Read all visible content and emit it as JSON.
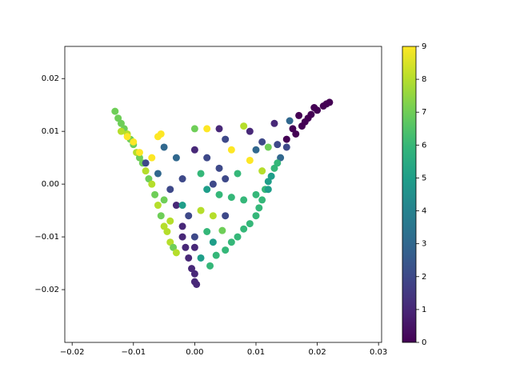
{
  "chart_data": {
    "type": "scatter",
    "x": [
      -0.013,
      -0.0125,
      -0.012,
      -0.0115,
      -0.011,
      -0.0105,
      -0.01,
      -0.0095,
      -0.009,
      -0.0085,
      -0.008,
      -0.0075,
      -0.007,
      -0.0065,
      -0.006,
      -0.0055,
      -0.005,
      -0.0045,
      -0.004,
      -0.0035,
      -0.003,
      -0.001,
      -0.0005,
      0,
      0,
      0.0003,
      -0.0015,
      -0.002,
      0.022,
      0.021,
      0.02,
      0.019,
      0.0185,
      0.018,
      0.0175,
      0.017,
      0.0215,
      0.0195,
      0.016,
      0.0165,
      0.015,
      0.015,
      0.014,
      0.0135,
      0.013,
      0.0125,
      0.012,
      0.0115,
      0.011,
      0.0105,
      0.01,
      0.009,
      0.008,
      0.007,
      0.006,
      0.005,
      0.0035,
      0.0025,
      0.002,
      0.004,
      0.006,
      0.008,
      0.01,
      0.012,
      0.003,
      0.005,
      0.001,
      -0.002,
      -0.004,
      -0.003,
      -0.001,
      0.001,
      0.003,
      -0.002,
      0,
      0.002,
      -0.004,
      -0.005,
      -0.006,
      -0.008,
      -0.007,
      -0.009,
      -0.011,
      -0.01,
      -0.012,
      -0.006,
      -0.0055,
      -0.005,
      -0.003,
      0,
      0,
      0.002,
      0.004,
      0.005,
      0.006,
      0.008,
      0.009,
      0.01,
      0.011,
      0.013,
      0.0135,
      0.0155,
      0.009,
      0.011,
      0.012,
      0.007,
      0.004,
      0.005,
      0,
      0.001,
      0.0045,
      0.003,
      -0.002,
      0.002
    ],
    "values": [
      0.0138,
      0.0125,
      0.0115,
      0.0105,
      0.0095,
      0.0085,
      0.0075,
      0.006,
      0.005,
      0.004,
      0.0025,
      0.001,
      0,
      -0.002,
      -0.004,
      -0.006,
      -0.008,
      -0.009,
      -0.011,
      -0.012,
      -0.013,
      -0.014,
      -0.016,
      -0.017,
      -0.0185,
      -0.019,
      -0.012,
      -0.01,
      0.0155,
      0.0148,
      0.014,
      0.0132,
      0.0125,
      0.0118,
      0.011,
      0.013,
      0.0152,
      0.0145,
      0.0105,
      0.0095,
      0.0085,
      0.007,
      0.005,
      0.004,
      0.003,
      0.0015,
      0.0005,
      -0.001,
      -0.003,
      -0.0045,
      -0.006,
      -0.0075,
      -0.0085,
      -0.01,
      -0.011,
      -0.0125,
      -0.0135,
      -0.0155,
      -0.001,
      -0.002,
      -0.0025,
      -0.003,
      -0.002,
      -0.001,
      0,
      0.001,
      0.002,
      0.001,
      -0.001,
      -0.004,
      -0.006,
      -0.005,
      -0.006,
      -0.008,
      -0.01,
      -0.009,
      -0.007,
      -0.003,
      0.002,
      0.004,
      0.005,
      0.006,
      0.009,
      0.008,
      0.01,
      0.009,
      0.0095,
      0.007,
      0.005,
      0.0065,
      0.0105,
      0.0105,
      0.0105,
      0.0085,
      0.0065,
      0.011,
      0.01,
      0.0065,
      0.008,
      0.0115,
      0.0075,
      0.012,
      0.0045,
      0.0025,
      0.007,
      0.002,
      0.003,
      -0.006,
      -0.012,
      -0.014,
      -0.0088,
      -0.011,
      -0.004,
      0.005
    ],
    "color_values": [
      7,
      7,
      7,
      7,
      8,
      7,
      7,
      8,
      7,
      7,
      8,
      7,
      8,
      7,
      8,
      7,
      8,
      8,
      8,
      7,
      8,
      1,
      1,
      1,
      1,
      1,
      1,
      1,
      0,
      0,
      0,
      0,
      0,
      0,
      0,
      0,
      0,
      0,
      0,
      0,
      0,
      2,
      3,
      6,
      6,
      5,
      5,
      6,
      6,
      6,
      6,
      6,
      6,
      6,
      6,
      6,
      6,
      6,
      5,
      6,
      6,
      6,
      6,
      5,
      2,
      2,
      6,
      2,
      2,
      1,
      2,
      8,
      8,
      1,
      2,
      6,
      8,
      7,
      3,
      2,
      9,
      9,
      9,
      9,
      8,
      9,
      9,
      3,
      3,
      1,
      7,
      9,
      1,
      2,
      9,
      8,
      1,
      3,
      2,
      1,
      2,
      3,
      9,
      8,
      7,
      6,
      2,
      2,
      1,
      5,
      7,
      5,
      5,
      2
    ],
    "colormap": "viridis",
    "clim": [
      0,
      9
    ],
    "cticks": [
      0,
      1,
      2,
      3,
      4,
      5,
      6,
      7,
      8,
      9
    ],
    "xlim": [
      -0.0212,
      0.0305
    ],
    "ylim": [
      -0.03,
      0.0261
    ],
    "xticks": [
      {
        "value": -0.02,
        "label": "−0.02"
      },
      {
        "value": -0.01,
        "label": "−0.01"
      },
      {
        "value": 0,
        "label": "0.00"
      },
      0.01,
      0.02,
      0.03
    ],
    "yticks": [
      {
        "value": -0.02,
        "label": "−0.02"
      },
      {
        "value": -0.01,
        "label": "−0.01"
      },
      {
        "value": 0,
        "label": "0.00"
      },
      0.01,
      0.02
    ]
  }
}
